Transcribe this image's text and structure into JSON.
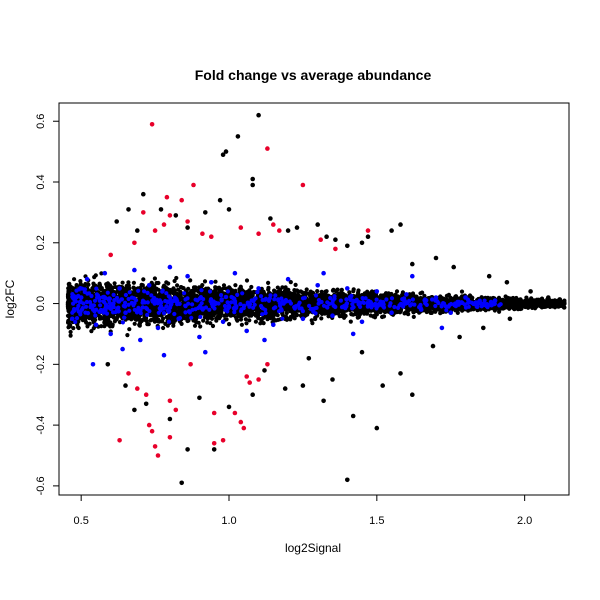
{
  "chart_data": {
    "type": "scatter",
    "title": "Fold change vs average abundance",
    "xlabel": "log2Signal",
    "ylabel": "log2FC",
    "xlim": [
      0.425,
      2.15
    ],
    "ylim": [
      -0.63,
      0.66
    ],
    "x_ticks": [
      0.5,
      1.0,
      1.5,
      2.0
    ],
    "x_tick_labels": [
      "0.5",
      "1.0",
      "1.5",
      "2.0"
    ],
    "y_ticks": [
      -0.6,
      -0.4,
      -0.2,
      0.0,
      0.2,
      0.4,
      0.6
    ],
    "y_tick_labels": [
      "-0.6",
      "-0.4",
      "-0.2",
      "0.0",
      "0.2",
      "0.4",
      "0.6"
    ],
    "grid": false,
    "colors": {
      "all": "#000000",
      "highlight_blue": "#0000ff",
      "highlight_red": "#e8002a"
    },
    "series": [
      {
        "color": "#000000",
        "points": [
          [
            1.1,
            0.62
          ],
          [
            1.03,
            0.55
          ],
          [
            0.98,
            0.49
          ],
          [
            0.99,
            0.5
          ],
          [
            1.08,
            0.41
          ],
          [
            1.08,
            0.39
          ],
          [
            1.0,
            0.31
          ],
          [
            0.97,
            0.34
          ],
          [
            0.92,
            0.3
          ],
          [
            0.82,
            0.29
          ],
          [
            0.86,
            0.25
          ],
          [
            1.14,
            0.28
          ],
          [
            1.2,
            0.24
          ],
          [
            1.23,
            0.25
          ],
          [
            1.3,
            0.26
          ],
          [
            1.33,
            0.22
          ],
          [
            1.36,
            0.21
          ],
          [
            1.4,
            0.19
          ],
          [
            1.45,
            0.2
          ],
          [
            1.47,
            0.22
          ],
          [
            1.55,
            0.24
          ],
          [
            1.58,
            0.26
          ],
          [
            1.62,
            0.13
          ],
          [
            1.7,
            0.15
          ],
          [
            1.76,
            0.12
          ],
          [
            1.88,
            0.09
          ],
          [
            1.94,
            0.07
          ],
          [
            2.02,
            0.04
          ],
          [
            2.08,
            0.02
          ],
          [
            0.71,
            0.36
          ],
          [
            0.66,
            0.31
          ],
          [
            0.62,
            0.27
          ],
          [
            0.69,
            0.24
          ],
          [
            0.77,
            0.31
          ],
          [
            0.59,
            -0.2
          ],
          [
            0.65,
            -0.27
          ],
          [
            0.72,
            -0.33
          ],
          [
            0.8,
            -0.38
          ],
          [
            0.9,
            -0.31
          ],
          [
            0.95,
            -0.48
          ],
          [
            1.08,
            -0.3
          ],
          [
            1.19,
            -0.28
          ],
          [
            1.25,
            -0.27
          ],
          [
            1.32,
            -0.32
          ],
          [
            1.35,
            -0.25
          ],
          [
            1.42,
            -0.37
          ],
          [
            1.5,
            -0.41
          ],
          [
            1.52,
            -0.27
          ],
          [
            1.58,
            -0.23
          ],
          [
            1.62,
            -0.3
          ],
          [
            1.69,
            -0.14
          ],
          [
            1.78,
            -0.11
          ],
          [
            1.86,
            -0.08
          ],
          [
            1.95,
            -0.05
          ],
          [
            1.4,
            -0.58
          ],
          [
            0.84,
            -0.59
          ],
          [
            0.86,
            -0.48
          ],
          [
            0.68,
            -0.35
          ],
          [
            1.0,
            -0.34
          ],
          [
            1.12,
            -0.22
          ],
          [
            1.27,
            -0.18
          ],
          [
            1.45,
            -0.16
          ]
        ]
      },
      {
        "color": "#0000ff",
        "points": [
          [
            0.47,
            -0.05
          ],
          [
            0.5,
            0.02
          ],
          [
            0.52,
            0.08
          ],
          [
            0.55,
            -0.07
          ],
          [
            0.58,
            0.1
          ],
          [
            0.6,
            -0.1
          ],
          [
            0.63,
            0.05
          ],
          [
            0.65,
            -0.03
          ],
          [
            0.68,
            0.11
          ],
          [
            0.7,
            -0.12
          ],
          [
            0.73,
            0.06
          ],
          [
            0.76,
            -0.08
          ],
          [
            0.8,
            0.12
          ],
          [
            0.83,
            -0.05
          ],
          [
            0.86,
            0.09
          ],
          [
            0.9,
            -0.11
          ],
          [
            0.94,
            0.07
          ],
          [
            0.98,
            -0.06
          ],
          [
            1.02,
            0.1
          ],
          [
            1.06,
            -0.09
          ],
          [
            1.1,
            0.05
          ],
          [
            1.15,
            -0.07
          ],
          [
            1.2,
            0.08
          ],
          [
            1.25,
            -0.05
          ],
          [
            1.3,
            0.06
          ],
          [
            1.35,
            -0.04
          ],
          [
            1.4,
            0.05
          ],
          [
            1.45,
            -0.06
          ],
          [
            1.5,
            0.04
          ],
          [
            1.55,
            -0.03
          ],
          [
            1.6,
            0.03
          ],
          [
            1.65,
            -0.02
          ],
          [
            1.7,
            0.02
          ],
          [
            1.75,
            -0.03
          ],
          [
            1.8,
            0.02
          ],
          [
            1.9,
            0.01
          ],
          [
            0.54,
            -0.2
          ],
          [
            0.64,
            -0.15
          ],
          [
            0.78,
            -0.17
          ],
          [
            0.92,
            -0.16
          ],
          [
            1.12,
            -0.12
          ],
          [
            1.32,
            0.1
          ],
          [
            1.42,
            -0.1
          ],
          [
            1.62,
            0.09
          ],
          [
            1.72,
            -0.08
          ]
        ]
      },
      {
        "color": "#e8002a",
        "points": [
          [
            0.74,
            0.59
          ],
          [
            1.13,
            0.51
          ],
          [
            0.88,
            0.39
          ],
          [
            1.25,
            0.39
          ],
          [
            0.79,
            0.35
          ],
          [
            0.84,
            0.34
          ],
          [
            0.71,
            0.3
          ],
          [
            0.8,
            0.29
          ],
          [
            0.78,
            0.26
          ],
          [
            0.86,
            0.27
          ],
          [
            0.75,
            0.24
          ],
          [
            0.91,
            0.23
          ],
          [
            0.94,
            0.22
          ],
          [
            1.15,
            0.26
          ],
          [
            1.17,
            0.24
          ],
          [
            1.04,
            0.25
          ],
          [
            1.1,
            0.23
          ],
          [
            0.68,
            0.2
          ],
          [
            1.31,
            0.21
          ],
          [
            1.47,
            0.24
          ],
          [
            1.36,
            0.18
          ],
          [
            0.6,
            0.16
          ],
          [
            0.63,
            -0.45
          ],
          [
            0.76,
            -0.5
          ],
          [
            0.75,
            -0.47
          ],
          [
            0.8,
            -0.44
          ],
          [
            0.74,
            -0.42
          ],
          [
            0.73,
            -0.4
          ],
          [
            0.95,
            -0.46
          ],
          [
            0.98,
            -0.45
          ],
          [
            1.05,
            -0.41
          ],
          [
            1.04,
            -0.39
          ],
          [
            1.02,
            -0.36
          ],
          [
            0.95,
            -0.36
          ],
          [
            0.82,
            -0.35
          ],
          [
            0.8,
            -0.32
          ],
          [
            0.72,
            -0.3
          ],
          [
            0.69,
            -0.28
          ],
          [
            0.66,
            -0.23
          ],
          [
            1.1,
            -0.25
          ],
          [
            1.06,
            -0.24
          ],
          [
            1.07,
            -0.26
          ],
          [
            1.13,
            -0.2
          ],
          [
            0.87,
            -0.2
          ]
        ]
      }
    ]
  }
}
